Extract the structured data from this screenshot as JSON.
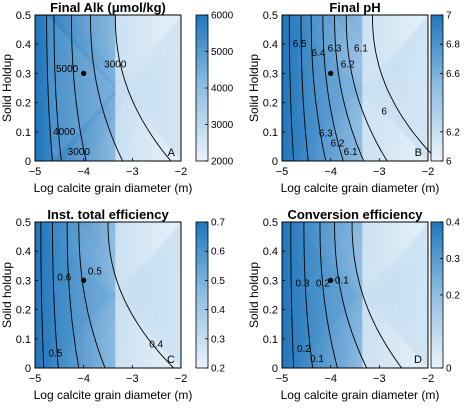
{
  "chart_data": [
    {
      "panel": "A",
      "type": "contour",
      "title": "Final Alk (μmol/kg)",
      "xlabel": "Log calcite grain diameter (m)",
      "ylabel": "Solid Holdup",
      "xlim": [
        -5,
        -2
      ],
      "ylim": [
        0,
        0.5
      ],
      "xticks": [
        "−5",
        "−4",
        "−3",
        "−2"
      ],
      "yticks": [
        "0",
        "0.1",
        "0.2",
        "0.3",
        "0.4",
        "0.5"
      ],
      "colorbar": {
        "range": [
          2000,
          6000
        ],
        "ticks": [
          "2000",
          "3000",
          "4000",
          "5000",
          "6000"
        ]
      },
      "contour_labels": [
        "5000",
        "3000",
        "4000",
        "3000"
      ],
      "marker": {
        "x": -4,
        "y": 0.3
      }
    },
    {
      "panel": "B",
      "type": "contour",
      "title": "Final pH",
      "xlabel": "Log calcite grain diameter (m)",
      "ylabel": "Solid Holdup",
      "xlim": [
        -5,
        -2
      ],
      "ylim": [
        0,
        0.5
      ],
      "xticks": [
        "−5",
        "−4",
        "−3",
        "−2"
      ],
      "yticks": [
        "0",
        "0.1",
        "0.2",
        "0.3",
        "0.4",
        "0.5"
      ],
      "colorbar": {
        "range": [
          6,
          7
        ],
        "ticks": [
          "6",
          "6.2",
          "6.6",
          "6.8",
          "7"
        ]
      },
      "contour_labels": [
        "6.5",
        "6.4",
        "6.3",
        "6.2",
        "6.1",
        "6",
        "6.3",
        "6.2",
        "6.1"
      ],
      "marker": {
        "x": -4,
        "y": 0.3
      }
    },
    {
      "panel": "C",
      "type": "contour",
      "title": "Inst. total efficiency",
      "xlabel": "Log calcite grain diameter (m)",
      "ylabel": "Solid holdup",
      "xlim": [
        -5,
        -2
      ],
      "ylim": [
        0,
        0.5
      ],
      "xticks": [
        "−5",
        "−4",
        "−3",
        "−2"
      ],
      "yticks": [
        "0",
        "0.1",
        "0.2",
        "0.3",
        "0.4",
        "0.5"
      ],
      "colorbar": {
        "range": [
          0.2,
          0.7
        ],
        "ticks": [
          "0.2",
          "0.3",
          "0.4",
          "0.5",
          "0.6",
          "0.7"
        ]
      },
      "contour_labels": [
        "0.6",
        "0.5",
        "0.5",
        "0.4"
      ],
      "marker": {
        "x": -4,
        "y": 0.3
      }
    },
    {
      "panel": "D",
      "type": "contour",
      "title": "Conversion efficiency",
      "xlabel": "Log calcite grain diameter (m)",
      "ylabel": "Solid holdup",
      "xlim": [
        -5,
        -2
      ],
      "ylim": [
        0,
        0.5
      ],
      "xticks": [
        "−5",
        "−4",
        "−3",
        "−2"
      ],
      "yticks": [
        "0",
        "0.1",
        "0.2",
        "0.3",
        "0.4",
        "0.5"
      ],
      "colorbar": {
        "range": [
          0,
          0.4
        ],
        "ticks": [
          "0",
          "0.2",
          "0.3",
          "0.4"
        ]
      },
      "contour_labels": [
        "0.3",
        "0.2",
        "0.1",
        "0.2",
        "0.1"
      ],
      "marker": {
        "x": -4,
        "y": 0.3
      }
    }
  ]
}
